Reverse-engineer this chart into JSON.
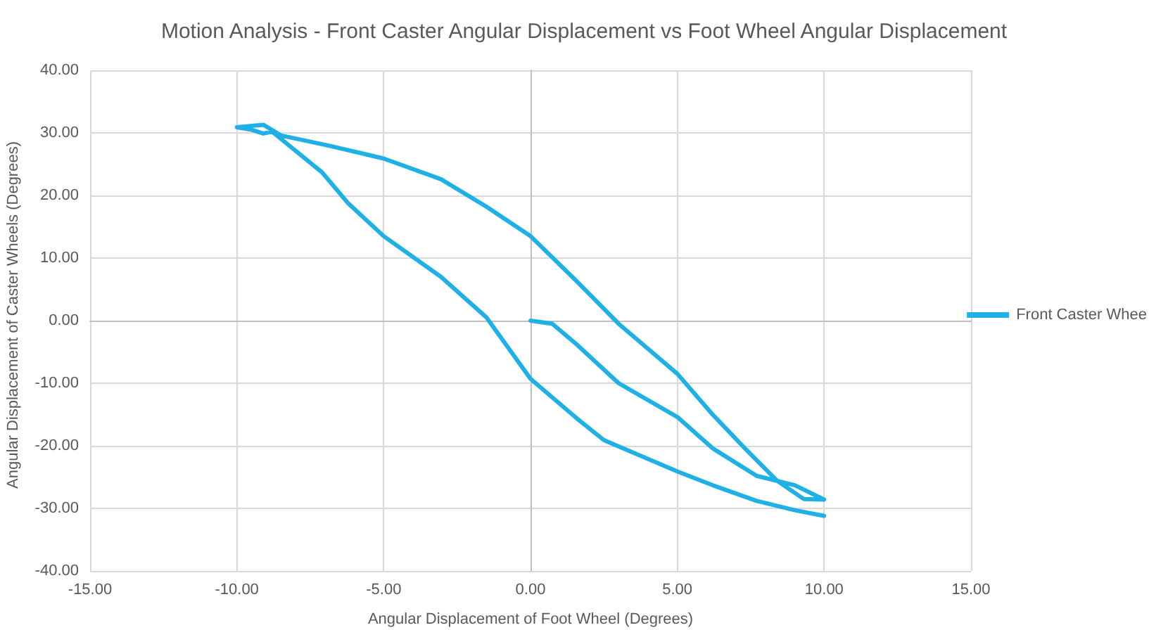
{
  "chart_data": {
    "type": "line",
    "title": "Motion Analysis - Front Caster Angular Displacement vs Foot Wheel Angular Displacement",
    "xlabel": "Angular Displacement of Foot Wheel (Degrees)",
    "ylabel": "Angular Displacement of Caster Wheels (Degrees)",
    "series": [
      {
        "name": "Front Caster Whee",
        "color": "#1fb0e6",
        "x": [
          0,
          0.74,
          1.57,
          3,
          5,
          6.2,
          7.7,
          9,
          10,
          9.3,
          8.4,
          7.3,
          6.2,
          5,
          3,
          1.57,
          0,
          -1.5,
          -3.05,
          -5,
          -6.9,
          -8.5,
          -9.1,
          -10,
          -9.5,
          -9.1,
          -8.8,
          -7.1,
          -6.2,
          -5,
          -3.05,
          -1.5,
          0,
          1.57,
          2.5,
          5,
          6.2,
          7.7,
          9,
          10
        ],
        "values": [
          0,
          -0.5,
          -3.8,
          -10,
          -15.4,
          -20.4,
          -24.8,
          -26.3,
          -28.6,
          -28.5,
          -25.6,
          -20.4,
          -15,
          -8.5,
          -0.5,
          6.3,
          13.5,
          18.2,
          22.6,
          25.9,
          28,
          29.6,
          31.3,
          30.9,
          30.5,
          29.9,
          30.2,
          23.7,
          18.7,
          13.5,
          7,
          0.5,
          -9.3,
          -15.6,
          -19.1,
          -24.1,
          -26.3,
          -28.8,
          -30.3,
          -31.2
        ]
      }
    ],
    "xlim": [
      -15,
      15
    ],
    "xticks": [
      {
        "value": -15,
        "label": "-15.00"
      },
      {
        "value": -10,
        "label": "-10.00"
      },
      {
        "value": -5,
        "label": "-5.00"
      },
      {
        "value": 0,
        "label": "0.00"
      },
      {
        "value": 5,
        "label": "5.00"
      },
      {
        "value": 10,
        "label": "10.00"
      },
      {
        "value": 15,
        "label": "15.00"
      }
    ],
    "ylim": [
      -40,
      40
    ],
    "yticks": [
      {
        "value": -40,
        "label": "-40.00"
      },
      {
        "value": -30,
        "label": "-30.00"
      },
      {
        "value": -20,
        "label": "-20.00"
      },
      {
        "value": -10,
        "label": "-10.00"
      },
      {
        "value": 0,
        "label": "0.00"
      },
      {
        "value": 10,
        "label": "10.00"
      },
      {
        "value": 20,
        "label": "20.00"
      },
      {
        "value": 30,
        "label": "30.00"
      },
      {
        "value": 40,
        "label": "40.00"
      }
    ],
    "grid": true,
    "legend": "right",
    "marker": "none",
    "line_style": "solid"
  }
}
